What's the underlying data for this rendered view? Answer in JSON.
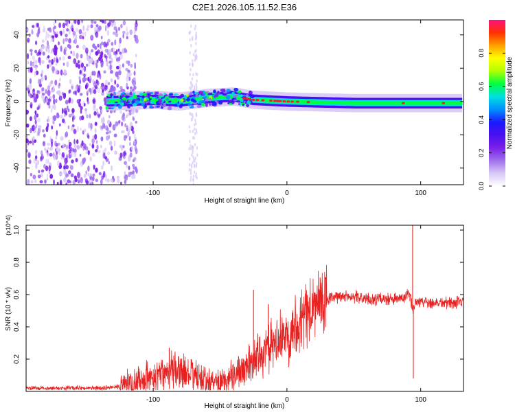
{
  "figure_title": "C2E1.2026.105.11.52.E36",
  "colors": {
    "trace": "#e8201f",
    "axis": "#000000",
    "colormap": [
      "#ffffff",
      "#d8c8f5",
      "#a070ee",
      "#7a20e8",
      "#4a10f0",
      "#1a1aff",
      "#0090ff",
      "#00e0e0",
      "#00ff40",
      "#b0ff00",
      "#ffff00",
      "#ffa000",
      "#ff3000",
      "#ff1080"
    ]
  },
  "chart_data": [
    {
      "type": "heatmap",
      "title": "",
      "xlabel": "Height of straight line (km)",
      "ylabel": "Frequency (Hz)",
      "xlim": [
        -195,
        132
      ],
      "ylim": [
        -50,
        49
      ],
      "xticks": [
        -100,
        0,
        100
      ],
      "xtick_labels": [
        "-100",
        "0",
        "100"
      ],
      "yticks": [
        40,
        20,
        0,
        -20,
        -40
      ],
      "ytick_labels": [
        "40",
        "20",
        "0",
        "-20",
        "-40"
      ],
      "colorbar": {
        "label": "Normalized spectral amplitude",
        "range": [
          0,
          1
        ],
        "ticks": [
          0.0,
          0.2,
          0.4,
          0.6,
          0.8
        ],
        "tick_labels": [
          "0.0",
          "0.2",
          "0.4",
          "0.6",
          "0.8"
        ]
      },
      "features": {
        "noise_region_km": [
          -195,
          -120
        ],
        "vertical_noise_stripe_km": [
          -73,
          -67
        ],
        "signal_band_center_hz": [
          {
            "x": -135,
            "y": 0
          },
          {
            "x": -100,
            "y": 1
          },
          {
            "x": -80,
            "y": 0
          },
          {
            "x": -60,
            "y": 2
          },
          {
            "x": -40,
            "y": 3
          },
          {
            "x": -25,
            "y": 1
          },
          {
            "x": 0,
            "y": 0
          },
          {
            "x": 50,
            "y": -1
          },
          {
            "x": 100,
            "y": -1
          },
          {
            "x": 132,
            "y": -1
          }
        ],
        "peak_points_km": [
          -32,
          -30,
          -28,
          -25,
          -22,
          -18,
          -12,
          -9,
          -7,
          -5,
          -2,
          1,
          4,
          8,
          16,
          87,
          117
        ]
      }
    },
    {
      "type": "line",
      "title": "",
      "xlabel": "Height of straight line (km)",
      "ylabel": "SNR (10 * v/v)",
      "y_scale_label": "(x10^4)",
      "xlim": [
        -195,
        132
      ],
      "ylim": [
        0,
        1.03
      ],
      "xticks": [
        -100,
        0,
        100
      ],
      "xtick_labels": [
        "-100",
        "0",
        "100"
      ],
      "yticks": [
        1.0,
        0.8,
        0.6,
        0.4,
        0.2
      ],
      "ytick_labels": [
        "1.0",
        "0.8",
        "0.6",
        "0.4",
        "0.2"
      ],
      "series": [
        {
          "name": "SNR",
          "x": [
            -195,
            -160,
            -140,
            -125,
            -115,
            -105,
            -95,
            -88,
            -80,
            -70,
            -60,
            -50,
            -40,
            -30,
            -20,
            -10,
            0,
            10,
            20,
            30,
            40,
            50,
            60,
            70,
            80,
            88,
            92,
            94,
            96,
            100,
            110,
            120,
            132
          ],
          "values": [
            0.02,
            0.02,
            0.02,
            0.03,
            0.05,
            0.08,
            0.11,
            0.14,
            0.12,
            0.1,
            0.06,
            0.06,
            0.1,
            0.15,
            0.24,
            0.28,
            0.35,
            0.45,
            0.52,
            0.57,
            0.59,
            0.59,
            0.57,
            0.57,
            0.57,
            0.58,
            0.6,
            0.5,
            0.56,
            0.56,
            0.55,
            0.55,
            0.55
          ]
        }
      ],
      "spikes": [
        {
          "x": -88,
          "value": 0.27
        },
        {
          "x": -25,
          "value": 0.63
        },
        {
          "x": -14,
          "value": 0.54
        },
        {
          "x": 94,
          "value": 1.03
        },
        {
          "x": 94.5,
          "value": 0.08
        }
      ]
    }
  ]
}
